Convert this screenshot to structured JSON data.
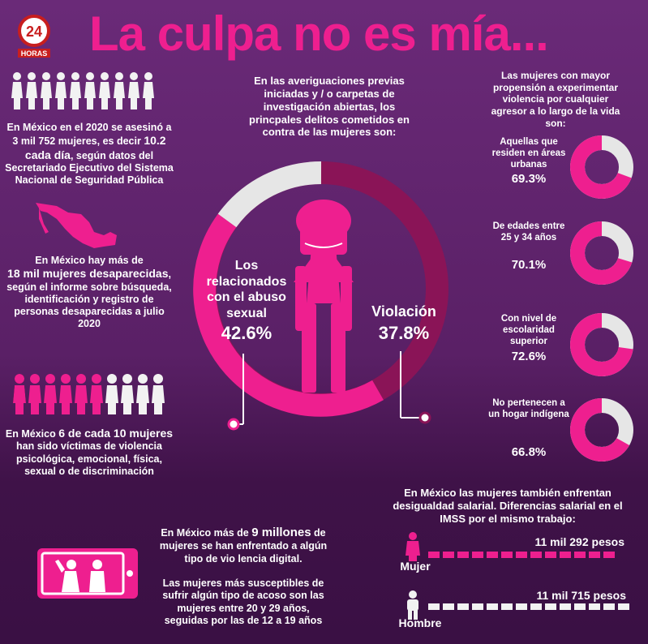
{
  "logo": {
    "number": "24",
    "text": "HORAS"
  },
  "title": "La culpa no es mía...",
  "left": {
    "block1": {
      "pre": "En México en el 2020 se asesinó a 3 mil 752 mujeres, es decir",
      "highlight": "10.2 cada día",
      "post": ", según datos del Secretariado Ejecutivo del Sistema Nacional de Seguridad Pública"
    },
    "block2": {
      "pre": "En México hay más de",
      "highlight": "18 mil mujeres desaparecidas",
      "post": ", según el informe sobre búsqueda, identificación y registro de personas desaparecidas a julio 2020"
    },
    "block3": {
      "pre": "En México",
      "highlight": "6 de cada 10 mujeres",
      "post": "han sido víctimas de violencia psicológica, emocional, física, sexual o de discriminación"
    }
  },
  "center": {
    "intro": "En las averiguaciones previas iniciadas y / o carpetas de investigación abiertas, los princpales delitos cometidos en contra de las mujeres son:",
    "label_left": "Los relacionados con el abuso sexual",
    "value_left": "42.6%",
    "label_right": "Violación",
    "value_right": "37.8%"
  },
  "right": {
    "intro": "Las mujeres con mayor propensión a experimentar violencia por cualquier agresor a lo largo de la vida son:",
    "items": [
      {
        "label": "Aquellas que residen en áreas urbanas",
        "value": "69.3%",
        "fraction": 0.693
      },
      {
        "label": "De edades entre 25 y 34 años",
        "value": "70.1%",
        "fraction": 0.701
      },
      {
        "label": "Con nivel de escolaridad superior",
        "value": "72.6%",
        "fraction": 0.726
      },
      {
        "label": "No pertenecen a un hogar indígena",
        "value": "66.8%",
        "fraction": 0.668
      }
    ]
  },
  "digital": {
    "pre": "En México más de",
    "highlight": "9 millones",
    "post": "de mujeres se han enfrentado a algún tipo de vio lencia digital.",
    "extra": "Las mujeres más susceptibles de sufrir algún tipo de acoso son las mujeres entre 20 y 29 años, seguidas por las de 12 a 19 años"
  },
  "salary": {
    "intro": "En México las mujeres también enfrentan desigualdad salarial. Diferencias salarial en el IMSS por el mismo trabajo:",
    "women_label": "Mujer",
    "women_value": "11 mil 292 pesos",
    "men_label": "Hombre",
    "men_value": "11 mil 715 pesos"
  },
  "colors": {
    "magenta": "#ee1f8f",
    "wine": "#8a1457",
    "light": "#e6e6e6",
    "purple": "#6a2a78"
  }
}
